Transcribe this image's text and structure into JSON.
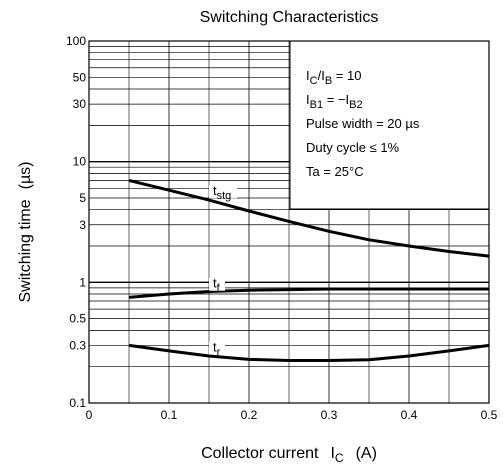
{
  "chart_data": {
    "type": "line",
    "title": "Switching Characteristics",
    "xlabel": "Collector current",
    "xlabel_symbol": "I",
    "xlabel_symbol_sub": "C",
    "xlabel_unit": "(A)",
    "ylabel": "Switching time",
    "ylabel_unit": "(µs)",
    "xlim": [
      0,
      0.5
    ],
    "ylim": [
      0.1,
      100
    ],
    "y_scale": "log",
    "grid": true,
    "x_ticks": [
      "0",
      "0.1",
      "0.2",
      "0.3",
      "0.4",
      "0.5"
    ],
    "y_tick_labels": [
      {
        "value": 0.1,
        "label": "0.1"
      },
      {
        "value": 0.3,
        "label": "0.3"
      },
      {
        "value": 0.5,
        "label": "0.5"
      },
      {
        "value": 1,
        "label": "1"
      },
      {
        "value": 3,
        "label": "3"
      },
      {
        "value": 5,
        "label": "5"
      },
      {
        "value": 10,
        "label": "10"
      },
      {
        "value": 30,
        "label": "30"
      },
      {
        "value": 50,
        "label": "50"
      },
      {
        "value": 100,
        "label": "100"
      }
    ],
    "series": [
      {
        "name": "t",
        "sub": "stg",
        "x": [
          0.05,
          0.1,
          0.15,
          0.2,
          0.25,
          0.3,
          0.35,
          0.4,
          0.45,
          0.5
        ],
        "y": [
          7.0,
          5.8,
          4.8,
          3.9,
          3.2,
          2.65,
          2.25,
          2.0,
          1.8,
          1.65
        ]
      },
      {
        "name": "t",
        "sub": "f",
        "x": [
          0.05,
          0.1,
          0.15,
          0.2,
          0.25,
          0.3,
          0.35,
          0.4,
          0.45,
          0.5
        ],
        "y": [
          0.75,
          0.8,
          0.84,
          0.86,
          0.87,
          0.88,
          0.88,
          0.88,
          0.88,
          0.88
        ]
      },
      {
        "name": "t",
        "sub": "r",
        "x": [
          0.05,
          0.1,
          0.15,
          0.2,
          0.25,
          0.3,
          0.35,
          0.4,
          0.45,
          0.5
        ],
        "y": [
          0.3,
          0.27,
          0.245,
          0.23,
          0.225,
          0.225,
          0.228,
          0.245,
          0.27,
          0.3
        ]
      }
    ],
    "conditions": [
      {
        "a": "I",
        "a_sub": "C",
        "b": "/I",
        "b_sub": "B",
        "c": " = 10"
      },
      {
        "a": "I",
        "a_sub": "B1",
        "b": " = −I",
        "b_sub": "B2",
        "c": ""
      },
      {
        "a": "Pulse width = 20 µs",
        "a_sub": "",
        "b": "",
        "b_sub": "",
        "c": ""
      },
      {
        "a": "Duty cycle ≤ 1%",
        "a_sub": "",
        "b": "",
        "b_sub": "",
        "c": ""
      },
      {
        "a": "Ta = 25°C",
        "a_sub": "",
        "b": "",
        "b_sub": "",
        "c": ""
      }
    ]
  }
}
